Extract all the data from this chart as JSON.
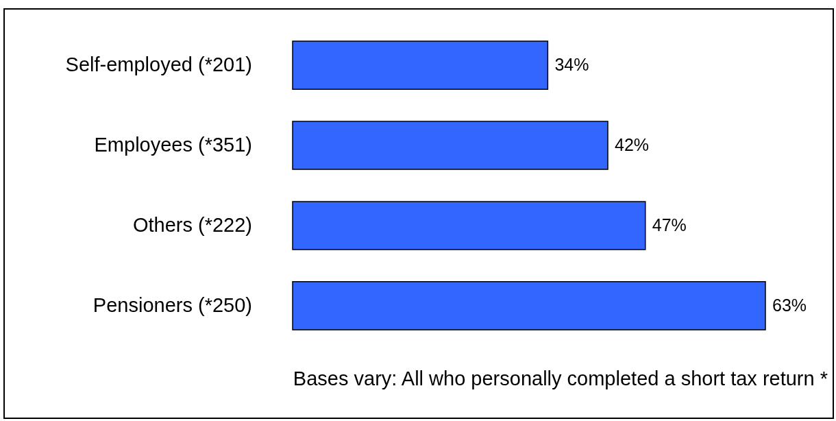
{
  "chart_data": {
    "type": "bar",
    "orientation": "horizontal",
    "categories": [
      "Self-employed (*201)",
      "Employees (*351)",
      "Others (*222)",
      "Pensioners (*250)"
    ],
    "values": [
      34,
      42,
      47,
      63
    ],
    "value_labels": [
      "34%",
      "42%",
      "47%",
      "63%"
    ],
    "color": "#3366ff",
    "annotations": [
      "Bases vary: All who personally completed a short tax return *"
    ]
  }
}
